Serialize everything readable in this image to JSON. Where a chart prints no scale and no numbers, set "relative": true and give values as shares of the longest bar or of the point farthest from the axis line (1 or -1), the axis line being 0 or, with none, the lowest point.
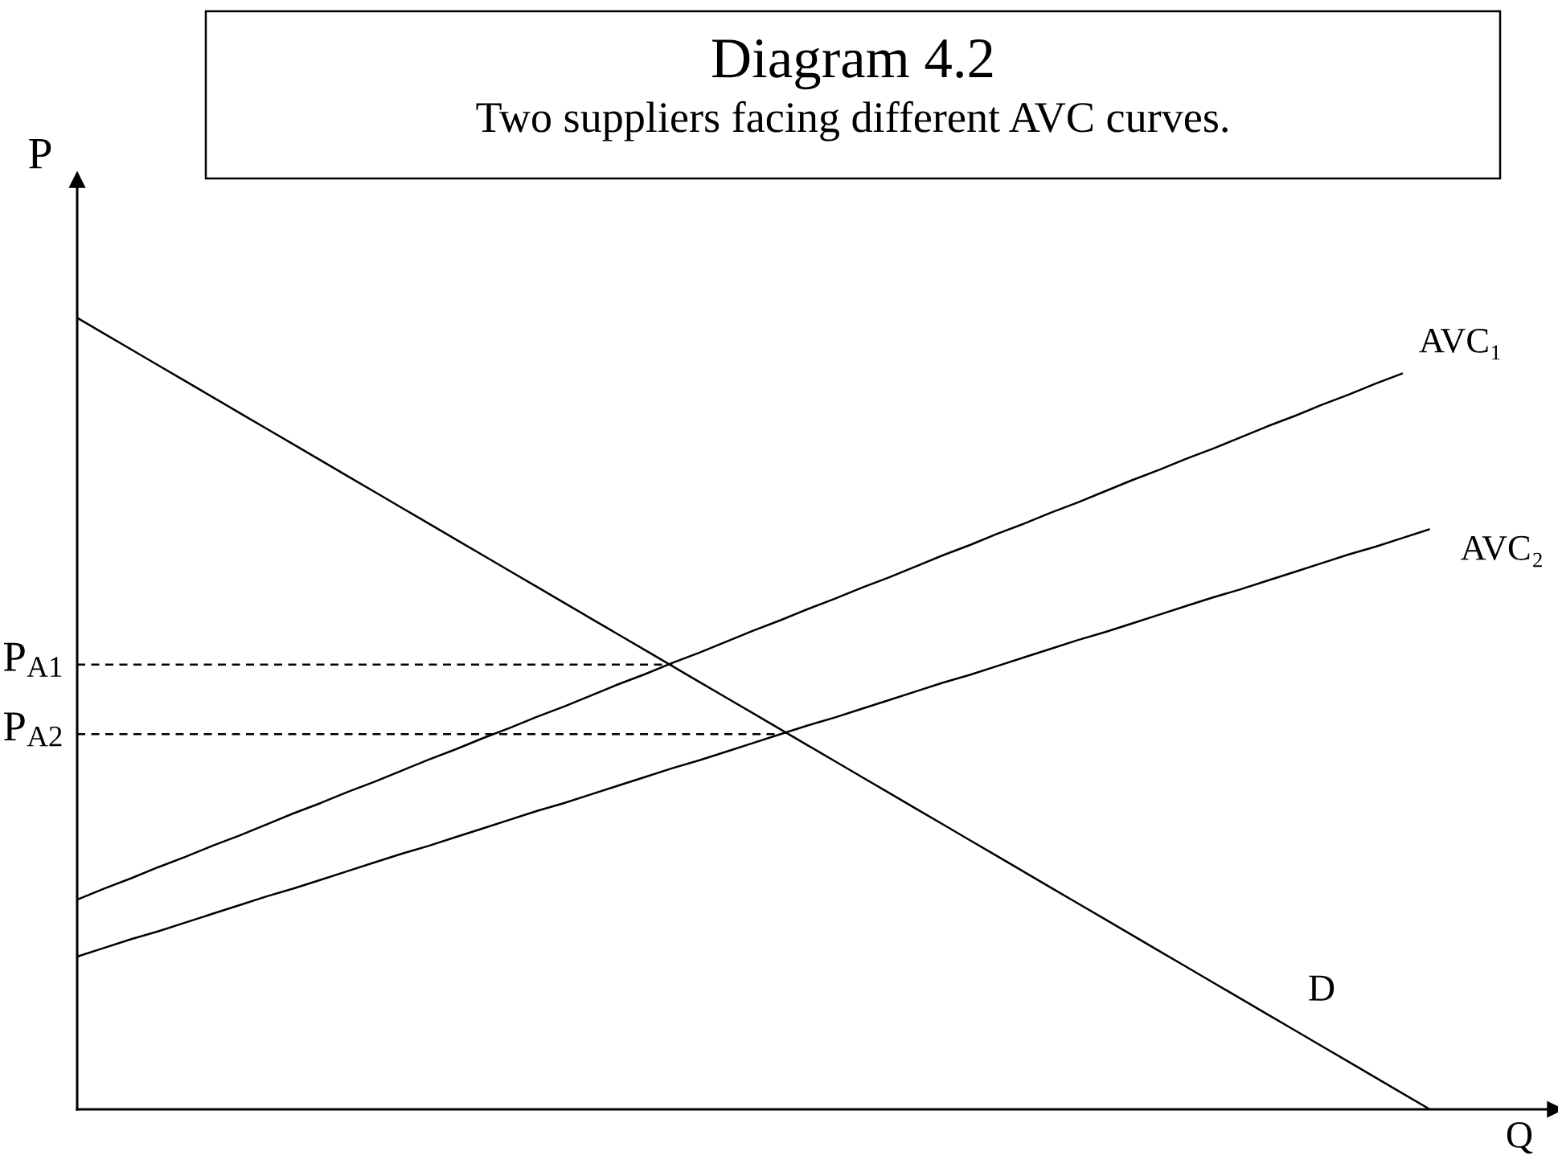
{
  "chart_data": {
    "type": "line",
    "title": "Diagram 4.2",
    "subtitle": "Two suppliers facing different AVC curves.",
    "xlabel": "Q",
    "ylabel": "P",
    "relative": true,
    "line_style": "solid",
    "categories": [
      null,
      null,
      null,
      null,
      null,
      null,
      null,
      null,
      null,
      null,
      null,
      null,
      null,
      null,
      null,
      null,
      null,
      null,
      null,
      null,
      null,
      null,
      null,
      null,
      null,
      null,
      null,
      null,
      null,
      null,
      null,
      null,
      null,
      null,
      null,
      null,
      null,
      null,
      null,
      null,
      null,
      null,
      null,
      null,
      null,
      null,
      null,
      null,
      null,
      null,
      null
    ],
    "series": [
      {
        "name": "D",
        "color": "#000000",
        "values": [
          1.0,
          0.98,
          0.96,
          0.94,
          0.92,
          0.9,
          0.88,
          0.86,
          0.84,
          0.82,
          0.8,
          0.78,
          0.76,
          0.74,
          0.72,
          0.7,
          0.68,
          0.66,
          0.64,
          0.62,
          0.6,
          0.58,
          0.56,
          0.54,
          0.52,
          0.5,
          0.48,
          0.46,
          0.44,
          0.42,
          0.4,
          0.38,
          0.36,
          0.34,
          0.32,
          0.3,
          0.28,
          0.26,
          0.24,
          0.22,
          0.2,
          0.18,
          0.16,
          0.14,
          0.12,
          0.1,
          0.08,
          0.06,
          0.04,
          0.02,
          0.0
        ]
      },
      {
        "name": "AVC₁",
        "color": "#000000",
        "values": [
          0.265,
          0.279,
          0.292,
          0.306,
          0.319,
          0.333,
          0.346,
          0.36,
          0.374,
          0.387,
          0.401,
          0.414,
          0.428,
          0.442,
          0.455,
          0.469,
          0.482,
          0.496,
          0.509,
          0.523,
          0.537,
          0.55,
          0.564,
          0.577,
          0.591,
          0.605,
          0.618,
          0.632,
          0.645,
          0.659,
          0.672,
          0.686,
          0.7,
          0.713,
          0.727,
          0.74,
          0.754,
          0.767,
          0.781,
          0.795,
          0.808,
          0.822,
          0.835,
          0.849,
          0.863,
          0.876,
          0.89,
          0.903,
          0.917,
          0.93,
          null
        ]
      },
      {
        "name": "AVC₂",
        "color": "#000000",
        "values": [
          0.193,
          0.204,
          0.215,
          0.225,
          0.236,
          0.247,
          0.258,
          0.269,
          0.279,
          0.29,
          0.301,
          0.312,
          0.323,
          0.333,
          0.344,
          0.355,
          0.366,
          0.377,
          0.387,
          0.398,
          0.409,
          0.42,
          0.431,
          0.441,
          0.452,
          0.463,
          0.474,
          0.485,
          0.495,
          0.506,
          0.517,
          0.528,
          0.539,
          0.549,
          0.56,
          0.571,
          0.582,
          0.593,
          0.603,
          0.614,
          0.625,
          0.636,
          0.647,
          0.657,
          0.668,
          0.679,
          0.69,
          0.701,
          0.711,
          0.722,
          0.733
        ]
      },
      {
        "name": "P$_{A1}$",
        "color": "#000000",
        "line_style": "dashed",
        "values": [
          0.562,
          0.562,
          0.562,
          0.562,
          0.562,
          0.562,
          0.562,
          0.562,
          0.562,
          0.562,
          0.562,
          0.562,
          0.562,
          0.562,
          0.562,
          0.562,
          0.562,
          0.562,
          0.562,
          0.562,
          0.562,
          0.562,
          0.562,
          null,
          null,
          null,
          null,
          null,
          null,
          null,
          null,
          null,
          null,
          null,
          null,
          null,
          null,
          null,
          null,
          null,
          null,
          null,
          null,
          null,
          null,
          null,
          null,
          null,
          null,
          null,
          null
        ]
      },
      {
        "name": "P$_{A2}$",
        "color": "#000000",
        "line_style": "dashed",
        "values": [
          0.474,
          0.474,
          0.474,
          0.474,
          0.474,
          0.474,
          0.474,
          0.474,
          0.474,
          0.474,
          0.474,
          0.474,
          0.474,
          0.474,
          0.474,
          0.474,
          0.474,
          0.474,
          0.474,
          0.474,
          0.474,
          0.474,
          0.474,
          0.474,
          0.474,
          0.474,
          0.474,
          null,
          null,
          null,
          null,
          null,
          null,
          null,
          null,
          null,
          null,
          null,
          null,
          null,
          null,
          null,
          null,
          null,
          null,
          null,
          null,
          null,
          null,
          null,
          null
        ]
      }
    ]
  }
}
